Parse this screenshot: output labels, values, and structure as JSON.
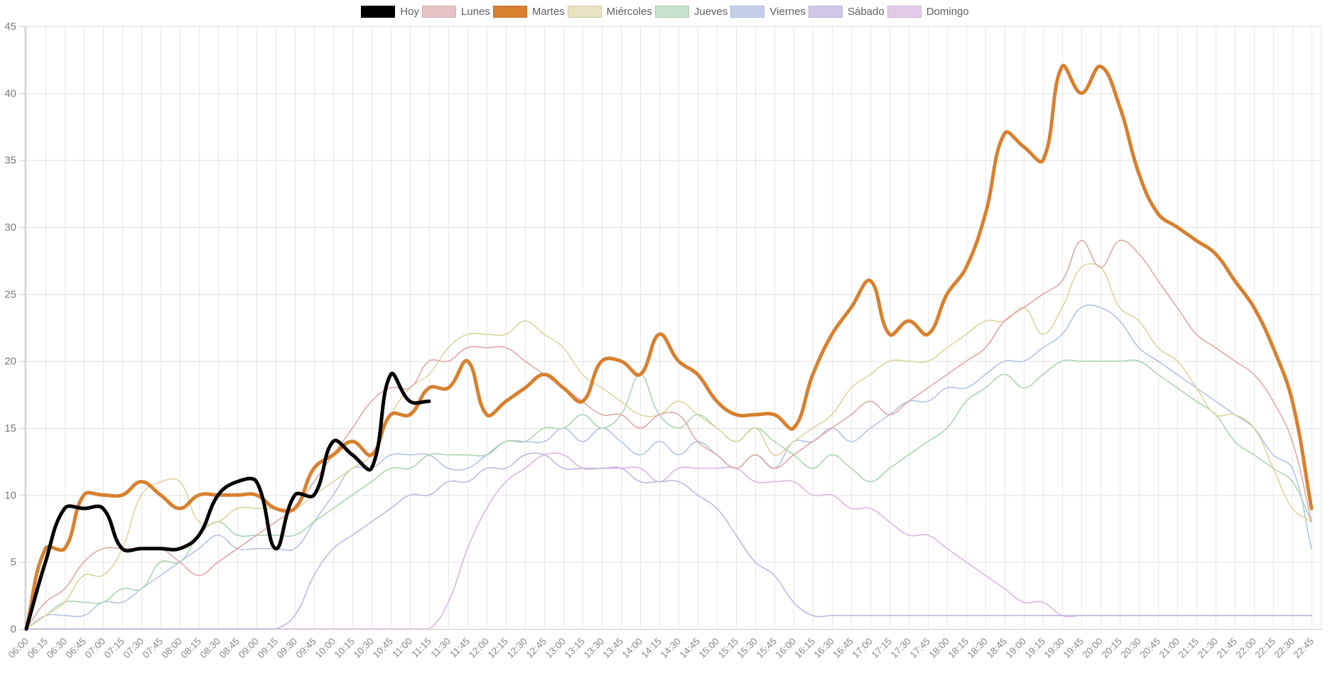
{
  "chart_data": {
    "type": "line",
    "title": "",
    "xlabel": "",
    "ylabel": "",
    "ylim": [
      0,
      45
    ],
    "y_tick_step": 5,
    "y_ticks": [
      0,
      5,
      10,
      15,
      20,
      25,
      30,
      35,
      40,
      45
    ],
    "grid": true,
    "legend_position": "top",
    "x": [
      "06:00",
      "06:15",
      "06:30",
      "06:45",
      "07:00",
      "07:15",
      "07:30",
      "07:45",
      "08:00",
      "08:15",
      "08:30",
      "08:45",
      "09:00",
      "09:15",
      "09:30",
      "09:45",
      "10:00",
      "10:15",
      "10:30",
      "10:45",
      "11:00",
      "11:15",
      "11:30",
      "11:45",
      "12:00",
      "12:15",
      "12:30",
      "12:45",
      "13:00",
      "13:15",
      "13:30",
      "13:45",
      "14:00",
      "14:15",
      "14:30",
      "14:45",
      "15:00",
      "15:15",
      "15:30",
      "15:45",
      "16:00",
      "16:15",
      "16:30",
      "16:45",
      "17:00",
      "17:15",
      "17:30",
      "17:45",
      "18:00",
      "18:15",
      "18:30",
      "18:45",
      "19:00",
      "19:15",
      "19:30",
      "19:45",
      "20:00",
      "20:15",
      "20:30",
      "20:45",
      "21:00",
      "21:15",
      "21:30",
      "21:45",
      "22:00",
      "22:15",
      "22:30",
      "22:45"
    ],
    "series": [
      {
        "name": "Hoy",
        "color": "#000000",
        "swatch": "#000000",
        "width": 5,
        "z": 10,
        "values": [
          0,
          5,
          9,
          9,
          9,
          6,
          6,
          6,
          6,
          7,
          10,
          11,
          11,
          6,
          10,
          10,
          14,
          13,
          12,
          19,
          17,
          17
        ]
      },
      {
        "name": "Lunes",
        "color": "#DFA7A7",
        "swatch": "#E7C4C7",
        "width": 1.6,
        "z": 6,
        "values": [
          0,
          2,
          3,
          5,
          6,
          6,
          6,
          6,
          5,
          4,
          5,
          6,
          7,
          8,
          9,
          11,
          13,
          15,
          17,
          18,
          18,
          20,
          20,
          21,
          21,
          21,
          20,
          19,
          18,
          17,
          16,
          16,
          15,
          16,
          16,
          14,
          13,
          12,
          13,
          12,
          13,
          14,
          15,
          16,
          17,
          16,
          17,
          18,
          19,
          20,
          21,
          23,
          24,
          25,
          26,
          29,
          27,
          29,
          28,
          26,
          24,
          22,
          21,
          20,
          19,
          17,
          14,
          8
        ]
      },
      {
        "name": "Martes",
        "color": "#D8802F",
        "swatch": "#D8802F",
        "width": 5,
        "z": 9,
        "values": [
          0,
          6,
          6,
          10,
          10,
          10,
          11,
          10,
          9,
          10,
          10,
          10,
          10,
          9,
          9,
          12,
          13,
          14,
          13,
          16,
          16,
          18,
          18,
          20,
          16,
          17,
          18,
          19,
          18,
          17,
          20,
          20,
          19,
          22,
          20,
          19,
          17,
          16,
          16,
          16,
          15,
          19,
          22,
          24,
          26,
          22,
          23,
          22,
          25,
          27,
          31,
          37,
          36,
          35,
          42,
          40,
          42,
          39,
          34,
          31,
          30,
          29,
          28,
          26,
          24,
          21,
          17,
          9
        ]
      },
      {
        "name": "Miércoles",
        "color": "#DCD49C",
        "swatch": "#E7E2C0",
        "width": 1.6,
        "z": 5,
        "values": [
          0,
          1,
          2,
          4,
          4,
          6,
          10,
          11,
          11,
          8,
          8,
          9,
          9,
          9,
          9,
          10,
          11,
          12,
          13,
          16,
          18,
          19,
          21,
          22,
          22,
          22,
          23,
          22,
          21,
          19,
          18,
          17,
          16,
          16,
          17,
          16,
          15,
          14,
          15,
          13,
          14,
          15,
          16,
          18,
          19,
          20,
          20,
          20,
          21,
          22,
          23,
          23,
          24,
          22,
          24,
          27,
          27,
          24,
          23,
          21,
          20,
          18,
          16,
          16,
          15,
          12,
          9,
          8
        ]
      },
      {
        "name": "Jueves",
        "color": "#ABD4B2",
        "swatch": "#C6E1CC",
        "width": 1.6,
        "z": 4,
        "values": [
          0,
          1,
          2,
          2,
          2,
          3,
          3,
          5,
          5,
          7,
          8,
          7,
          7,
          7,
          7,
          8,
          9,
          10,
          11,
          12,
          12,
          13,
          13,
          13,
          13,
          14,
          14,
          15,
          15,
          16,
          15,
          16,
          19,
          16,
          15,
          16,
          15,
          14,
          15,
          14,
          13,
          12,
          13,
          12,
          11,
          12,
          13,
          14,
          15,
          17,
          18,
          19,
          18,
          19,
          20,
          20,
          20,
          20,
          20,
          19,
          18,
          17,
          16,
          14,
          13,
          12,
          11,
          8
        ]
      },
      {
        "name": "Viernes",
        "color": "#B3C2E4",
        "swatch": "#C6CFEA",
        "width": 1.6,
        "z": 3,
        "values": [
          0,
          1,
          1,
          1,
          2,
          2,
          3,
          4,
          5,
          6,
          7,
          6,
          6,
          6,
          6,
          8,
          10,
          12,
          12,
          13,
          13,
          13,
          12,
          12,
          13,
          14,
          14,
          14,
          15,
          14,
          15,
          14,
          13,
          14,
          13,
          14,
          13,
          12,
          13,
          12,
          14,
          14,
          15,
          14,
          15,
          16,
          17,
          17,
          18,
          18,
          19,
          20,
          20,
          21,
          22,
          24,
          24,
          23,
          21,
          20,
          19,
          18,
          17,
          16,
          15,
          13,
          12,
          6
        ]
      },
      {
        "name": "Sábado",
        "color": "#C4B5E0",
        "swatch": "#D2C7E9",
        "width": 1.6,
        "z": 2,
        "values": [
          0,
          0,
          0,
          0,
          0,
          0,
          0,
          0,
          0,
          0,
          0,
          0,
          0,
          0,
          1,
          4,
          6,
          7,
          8,
          9,
          10,
          10,
          11,
          11,
          12,
          12,
          13,
          13,
          12,
          12,
          12,
          12,
          11,
          11,
          11,
          10,
          9,
          7,
          5,
          4,
          2,
          1,
          1,
          1,
          1,
          1,
          1,
          1,
          1,
          1,
          1,
          1,
          1,
          1,
          1,
          1,
          1,
          1,
          1,
          1,
          1,
          1,
          1,
          1,
          1,
          1,
          1,
          1
        ]
      },
      {
        "name": "Domingo",
        "color": "#D8B7DF",
        "swatch": "#E2CBE8",
        "width": 1.6,
        "z": 1,
        "values": [
          0,
          0,
          0,
          0,
          0,
          0,
          0,
          0,
          0,
          0,
          0,
          0,
          0,
          0,
          0,
          0,
          0,
          0,
          0,
          0,
          0,
          0,
          2,
          6,
          9,
          11,
          12,
          13,
          13,
          12,
          12,
          12,
          12,
          11,
          12,
          12,
          12,
          12,
          11,
          11,
          11,
          10,
          10,
          9,
          9,
          8,
          7,
          7,
          6,
          5,
          4,
          3,
          2,
          2,
          1,
          1,
          1,
          1,
          1,
          1,
          1,
          1,
          1,
          1,
          1,
          1,
          1,
          1
        ]
      }
    ]
  }
}
